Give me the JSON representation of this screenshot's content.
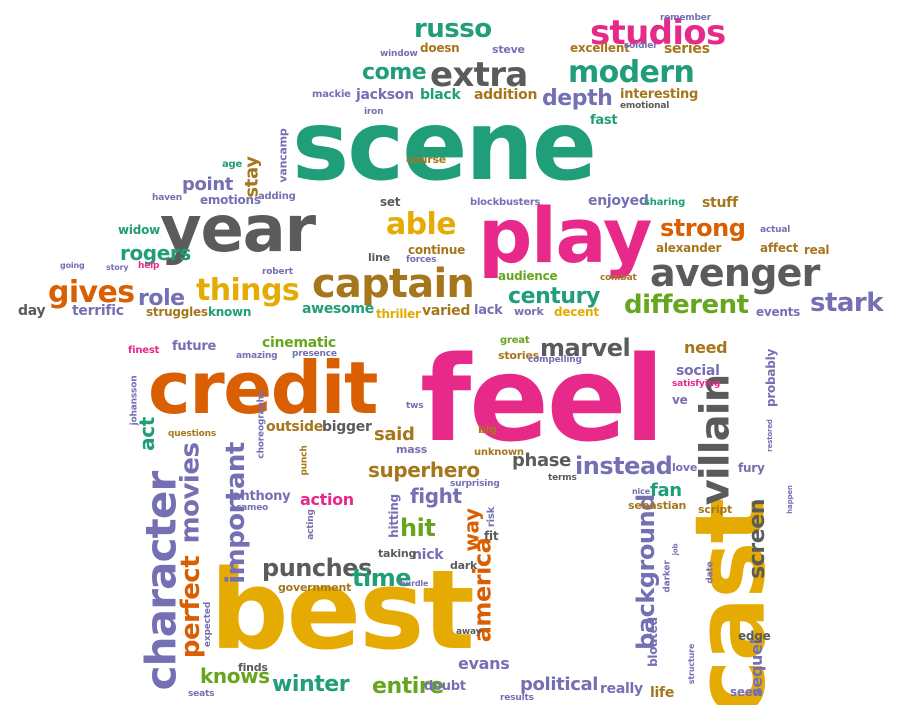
{
  "palette": {
    "teal": "#1f9e79",
    "gray": "#5b5b5b",
    "pink": "#e7298a",
    "orange": "#d95f02",
    "purple": "#7570b3",
    "green": "#66a61e",
    "mustard": "#e6ab02",
    "brown": "#a6761d"
  },
  "words": {
    "feel": "feel",
    "scene": "scene",
    "best": "best",
    "credit": "credit",
    "play": "play",
    "year": "year",
    "cast": "cast",
    "character": "character",
    "captain": "captain",
    "avenger": "avenger",
    "villain": "villain",
    "studios": "studios",
    "extra": "extra",
    "modern": "modern",
    "russo": "russo",
    "things": "things",
    "gives": "gives",
    "able": "able",
    "strong": "strong",
    "different": "different",
    "stark": "stark",
    "marvel": "marvel",
    "movies": "movies",
    "important": "important",
    "superhero": "superhero",
    "instead": "instead",
    "perfect": "perfect",
    "background": "background",
    "america": "america",
    "punches": "punches",
    "time": "time",
    "screen": "screen",
    "winter": "winter",
    "entire": "entire",
    "knows": "knows",
    "political": "political",
    "century": "century",
    "rogers": "rogers",
    "role": "role",
    "come": "come",
    "depth": "depth",
    "point": "point",
    "stay": "stay",
    "fight": "fight",
    "way": "way",
    "hit": "hit",
    "action": "action",
    "act": "act",
    "phase": "phase",
    "fan": "fan",
    "said": "said",
    "evans": "evans",
    "sequel": "sequel",
    "need": "need",
    "cinematic": "cinematic",
    "awesome": "awesome",
    "terrific": "terrific",
    "alexander": "alexander",
    "black": "black",
    "jackson": "jackson",
    "addition": "addition",
    "interesting": "interesting",
    "series": "series",
    "excellent": "excellent",
    "enjoyed": "enjoyed",
    "stuff": "stuff",
    "fast": "fast",
    "vancamp": "vancamp",
    "emotions": "emotions",
    "continue": "continue",
    "audience": "audience",
    "varied": "varied",
    "lack": "lack",
    "known": "known",
    "struggles": "struggles",
    "thriller": "thriller",
    "work": "work",
    "decent": "decent",
    "events": "events",
    "day": "day",
    "future": "future",
    "finest": "finest",
    "stories": "stories",
    "great": "great",
    "social": "social",
    "satisfying": "satisfying",
    "probably": "probably",
    "ve": "ve",
    "outside": "outside",
    "bigger": "bigger",
    "mass": "mass",
    "anthony": "anthony",
    "hitting": "hitting",
    "nick": "nick",
    "taking": "taking",
    "dark": "dark",
    "government": "government",
    "doubt": "doubt",
    "really": "really",
    "life": "life",
    "seen": "seen",
    "edge": "edge",
    "bloated": "bloated",
    "sebastian": "sebastian",
    "script": "script",
    "love": "love",
    "fury": "fury",
    "terms": "terms",
    "unknown": "unknown",
    "big": "big",
    "choreography": "choreography",
    "questions": "questions",
    "johansson": "johansson",
    "finds": "finds",
    "expected": "expected",
    "seats": "seats",
    "results": "results",
    "away": "away",
    "punch": "punch",
    "acting": "acting",
    "risk": "risk",
    "fit": "fit",
    "compelling": "compelling",
    "presence": "presence",
    "amazing": "amazing",
    "surprising": "surprising",
    "doesn": "doesn",
    "steve": "steve",
    "mackie": "mackie",
    "window": "window",
    "soldier": "soldier",
    "remember": "remember",
    "emotional": "emotional",
    "iron": "iron",
    "course": "course",
    "sharing": "sharing",
    "blockbusters": "blockbusters",
    "set": "set",
    "haven": "haven",
    "widow": "widow",
    "adding": "adding",
    "age": "age",
    "line": "line",
    "forces": "forces",
    "help": "help",
    "story": "story",
    "going": "going",
    "robert": "robert",
    "combat": "combat",
    "affect": "affect",
    "real": "real",
    "actual": "actual",
    "happen": "happen",
    "nice": "nice",
    "job": "job",
    "date": "date",
    "darker": "darker",
    "structure": "structure",
    "tws": "tws",
    "restored": "restored",
    "cameo": "cameo",
    "hurdle": "hurdle"
  }
}
